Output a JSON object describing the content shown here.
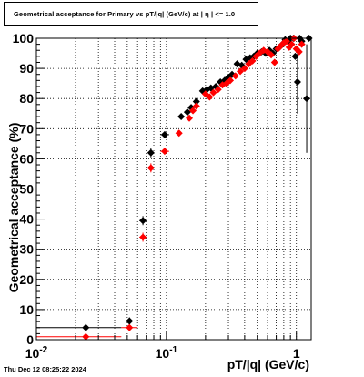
{
  "chart_data": {
    "type": "scatter",
    "title": "Geometrical acceptance for Primary vs pT/|q| (GeV/c) at |  η  | <= 1.0",
    "xlabel": "pT/|q| (GeV/c)",
    "ylabel": "Geometrical acceptance (%)",
    "x_scale": "log",
    "xlim": [
      0.01,
      1.3
    ],
    "ylim": [
      0,
      100
    ],
    "grid": true,
    "x_tick_labels": [
      "10^-2",
      "10^-1",
      "1"
    ],
    "y_tick_labels": [
      "0",
      "10",
      "20",
      "30",
      "40",
      "50",
      "60",
      "70",
      "80",
      "90",
      "100"
    ],
    "series": [
      {
        "color": "#000000",
        "points": [
          {
            "x": 0.024,
            "y": 4.0,
            "xlo": 0.01,
            "xhi": 0.045,
            "ylo": 2.8,
            "yhi": 5.2
          },
          {
            "x": 0.052,
            "y": 6.2,
            "xlo": 0.045,
            "xhi": 0.06,
            "ylo": 5.0,
            "yhi": 7.4
          },
          {
            "x": 0.066,
            "y": 39.5,
            "xlo": 0.062,
            "xhi": 0.07,
            "ylo": 38.0,
            "yhi": 41.0
          },
          {
            "x": 0.076,
            "y": 62.0,
            "xlo": 0.073,
            "xhi": 0.079,
            "ylo": 60.5,
            "yhi": 63.5
          },
          {
            "x": 0.097,
            "y": 68.0,
            "xlo": 0.09,
            "xhi": 0.105,
            "ylo": 67.0,
            "yhi": 69.0
          },
          {
            "x": 0.13,
            "y": 74.0,
            "xlo": 0.125,
            "xhi": 0.135,
            "ylo": 73.0,
            "yhi": 75.0
          },
          {
            "x": 0.145,
            "y": 75.5
          },
          {
            "x": 0.155,
            "y": 77.0
          },
          {
            "x": 0.17,
            "y": 79.0
          },
          {
            "x": 0.19,
            "y": 82.5
          },
          {
            "x": 0.205,
            "y": 83.0
          },
          {
            "x": 0.22,
            "y": 83.5
          },
          {
            "x": 0.24,
            "y": 84.0
          },
          {
            "x": 0.26,
            "y": 85.5
          },
          {
            "x": 0.28,
            "y": 86.0
          },
          {
            "x": 0.3,
            "y": 87.0
          },
          {
            "x": 0.32,
            "y": 88.0
          },
          {
            "x": 0.35,
            "y": 91.5
          },
          {
            "x": 0.38,
            "y": 91.0
          },
          {
            "x": 0.41,
            "y": 93.0
          },
          {
            "x": 0.44,
            "y": 93.5
          },
          {
            "x": 0.47,
            "y": 94.0
          },
          {
            "x": 0.5,
            "y": 95.0
          },
          {
            "x": 0.54,
            "y": 95.5
          },
          {
            "x": 0.58,
            "y": 95.0
          },
          {
            "x": 0.62,
            "y": 96.0
          },
          {
            "x": 0.66,
            "y": 95.0
          },
          {
            "x": 0.7,
            "y": 96.5
          },
          {
            "x": 0.74,
            "y": 97.0
          },
          {
            "x": 0.78,
            "y": 98.0
          },
          {
            "x": 0.82,
            "y": 99.5
          },
          {
            "x": 0.86,
            "y": 99.0
          },
          {
            "x": 0.9,
            "y": 100.0
          },
          {
            "x": 0.95,
            "y": 100.0
          },
          {
            "x": 0.98,
            "y": 94.0
          },
          {
            "x": 1.02,
            "y": 85.5,
            "ylo": 75.0,
            "yhi": 96.0
          },
          {
            "x": 1.06,
            "y": 100.0
          },
          {
            "x": 1.1,
            "y": 99.0
          },
          {
            "x": 1.2,
            "y": 80.0,
            "ylo": 62.0,
            "yhi": 98.0
          },
          {
            "x": 1.25,
            "y": 100.0
          }
        ]
      },
      {
        "color": "#ff0000",
        "points": [
          {
            "x": 0.024,
            "y": 1.0,
            "xlo": 0.01,
            "xhi": 0.045,
            "ylo": 0.3,
            "yhi": 1.7
          },
          {
            "x": 0.052,
            "y": 4.0,
            "xlo": 0.045,
            "xhi": 0.06,
            "ylo": 3.0,
            "yhi": 5.0
          },
          {
            "x": 0.066,
            "y": 34.0,
            "xlo": 0.062,
            "xhi": 0.07,
            "ylo": 32.5,
            "yhi": 35.5
          },
          {
            "x": 0.076,
            "y": 57.0,
            "xlo": 0.073,
            "xhi": 0.079,
            "ylo": 55.5,
            "yhi": 58.5
          },
          {
            "x": 0.097,
            "y": 62.5,
            "xlo": 0.09,
            "xhi": 0.105,
            "ylo": 61.5,
            "yhi": 63.5
          },
          {
            "x": 0.125,
            "y": 68.5,
            "xlo": 0.12,
            "xhi": 0.13,
            "ylo": 67.5,
            "yhi": 69.5
          },
          {
            "x": 0.15,
            "y": 73.5
          },
          {
            "x": 0.16,
            "y": 76.0
          },
          {
            "x": 0.17,
            "y": 77.5
          },
          {
            "x": 0.2,
            "y": 81.5
          },
          {
            "x": 0.215,
            "y": 80.5
          },
          {
            "x": 0.23,
            "y": 82.0
          },
          {
            "x": 0.25,
            "y": 83.0
          },
          {
            "x": 0.27,
            "y": 84.5
          },
          {
            "x": 0.29,
            "y": 85.0
          },
          {
            "x": 0.31,
            "y": 86.0
          },
          {
            "x": 0.34,
            "y": 87.5
          },
          {
            "x": 0.37,
            "y": 89.0
          },
          {
            "x": 0.4,
            "y": 90.0
          },
          {
            "x": 0.43,
            "y": 91.5
          },
          {
            "x": 0.46,
            "y": 92.5
          },
          {
            "x": 0.49,
            "y": 94.0
          },
          {
            "x": 0.52,
            "y": 95.0
          },
          {
            "x": 0.56,
            "y": 96.0
          },
          {
            "x": 0.6,
            "y": 95.5
          },
          {
            "x": 0.64,
            "y": 94.5
          },
          {
            "x": 0.68,
            "y": 92.0
          },
          {
            "x": 0.72,
            "y": 96.5
          },
          {
            "x": 0.76,
            "y": 97.5
          },
          {
            "x": 0.8,
            "y": 98.5
          },
          {
            "x": 0.84,
            "y": 99.0
          },
          {
            "x": 0.88,
            "y": 97.0
          },
          {
            "x": 0.92,
            "y": 98.0
          },
          {
            "x": 0.96,
            "y": 100.0
          },
          {
            "x": 1.0,
            "y": 96.5
          },
          {
            "x": 1.05,
            "y": 95.5
          },
          {
            "x": 1.1,
            "y": 98.0
          }
        ]
      }
    ]
  },
  "footer": {
    "date": "Thu Dec 12 08:25:22 2024"
  }
}
